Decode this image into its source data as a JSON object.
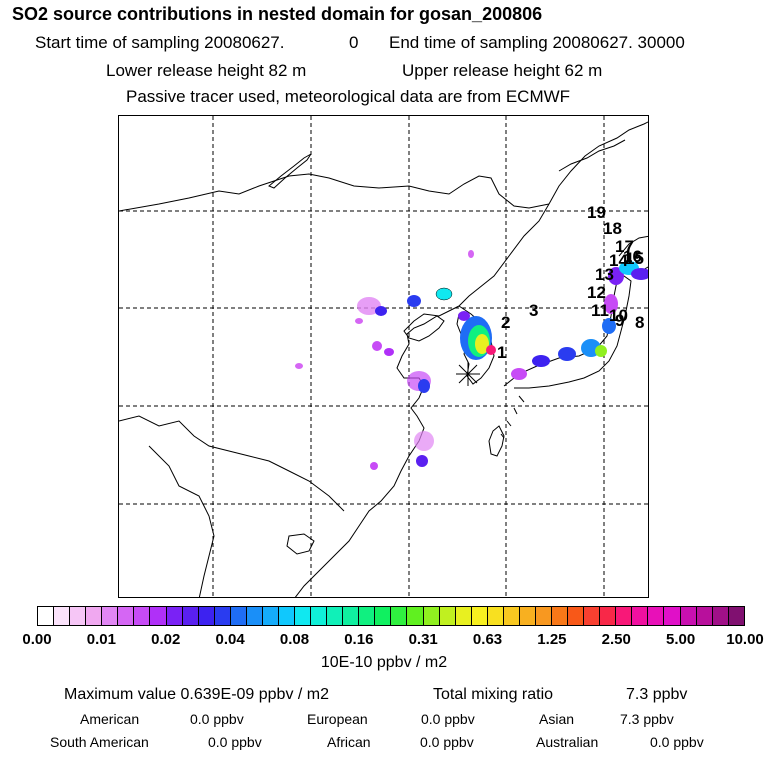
{
  "title": "SO2 source contributions in nested domain for gosan_200806",
  "header": {
    "start_label": "Start time of sampling 20080627.",
    "start_hour": "0",
    "end_label": "End time of sampling 20080627. 30000",
    "lower_release": "Lower release height   82 m",
    "upper_release": "Upper release height   62 m",
    "note": "Passive tracer used, meteorological data are from ECMWF"
  },
  "map": {
    "site_marker_icon": "asterisk-receptor-icon",
    "labels": [
      "1",
      "2",
      "3",
      "8",
      "9",
      "10",
      "11",
      "12",
      "13",
      "14",
      "15",
      "16",
      "17",
      "18",
      "19"
    ]
  },
  "colorbar": {
    "ticks": [
      "0.00",
      "0.01",
      "0.02",
      "0.04",
      "0.08",
      "0.16",
      "0.31",
      "0.63",
      "1.25",
      "2.50",
      "5.00",
      "10.00"
    ],
    "units": "10E-10 ppbv / m2",
    "colors": [
      "#ffffff",
      "#fbe3fb",
      "#f6c6f6",
      "#f0a8f0",
      "#e186f4",
      "#d566f4",
      "#c74bf6",
      "#b030f8",
      "#7a22f5",
      "#5a20f0",
      "#3d22f0",
      "#2a3cf0",
      "#1f6df5",
      "#1a8ff8",
      "#15acfb",
      "#10c8fd",
      "#10e8f0",
      "#10f0d8",
      "#10f0b8",
      "#10f0a0",
      "#10f080",
      "#10f060",
      "#30f040",
      "#60f020",
      "#90f020",
      "#c0f020",
      "#e8f020",
      "#f8f020",
      "#f8e020",
      "#f8c820",
      "#f8b020",
      "#f89820",
      "#f87818",
      "#f85818",
      "#f84030",
      "#f82848",
      "#f81878",
      "#f010a0",
      "#e810b8",
      "#e010c8",
      "#c810b0",
      "#b8109c",
      "#a01088",
      "#801070"
    ]
  },
  "stats": {
    "max_label": "Maximum value  0.639E-09 ppbv / m2",
    "total_label": "Total mixing ratio",
    "total_value": "7.3 ppbv",
    "regions": [
      {
        "name": "American",
        "value": "0.0 ppbv"
      },
      {
        "name": "European",
        "value": "0.0 ppbv"
      },
      {
        "name": "Asian",
        "value": "7.3 ppbv"
      },
      {
        "name": "South American",
        "value": "0.0 ppbv"
      },
      {
        "name": "African",
        "value": "0.0 ppbv"
      },
      {
        "name": "Australian",
        "value": "0.0 ppbv"
      }
    ]
  }
}
